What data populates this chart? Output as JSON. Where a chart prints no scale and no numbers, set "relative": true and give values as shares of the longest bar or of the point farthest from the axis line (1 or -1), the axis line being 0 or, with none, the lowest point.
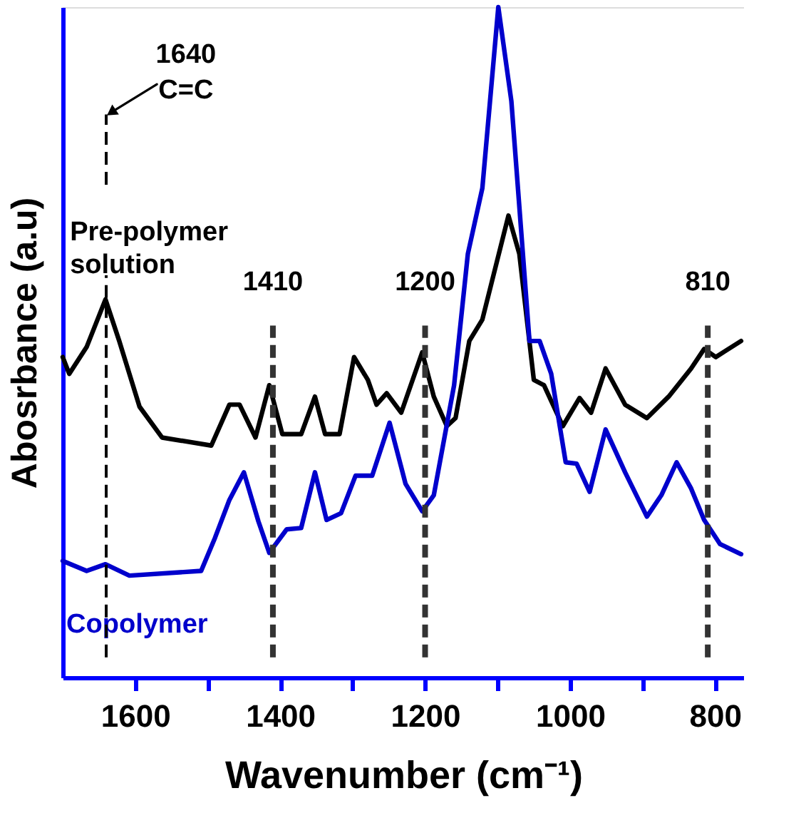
{
  "chart_data": {
    "type": "line",
    "relative": true,
    "xlabel": "Wavenumber (cm⁻¹)",
    "ylabel": "Abosrbance (a.u)",
    "xlim": [
      1700,
      760
    ],
    "xticks": [
      1600,
      {
        "value": 1500,
        "label": null
      },
      1400,
      {
        "value": 1300,
        "label": null
      },
      1200,
      {
        "value": 1100,
        "label": null
      },
      1000,
      {
        "value": 900,
        "label": null
      },
      800
    ],
    "grid": false,
    "legend": false,
    "marker": "none",
    "line_style": "solid",
    "series": [
      {
        "name": "Pre-polymer solution",
        "color": "#000000",
        "x": [
          1700,
          1691,
          1667,
          1641,
          1622,
          1594,
          1563,
          1495,
          1470,
          1456,
          1434,
          1415,
          1397,
          1371,
          1352,
          1338,
          1318,
          1298,
          1279,
          1267,
          1253,
          1233,
          1204,
          1188,
          1170,
          1158,
          1139,
          1121,
          1085,
          1070,
          1050,
          1036,
          1010,
          987,
          971,
          951,
          924,
          894,
          864,
          833,
          815,
          799,
          764
        ],
        "values": [
          0.478,
          0.453,
          0.493,
          0.564,
          0.502,
          0.404,
          0.358,
          0.346,
          0.407,
          0.407,
          0.358,
          0.436,
          0.363,
          0.363,
          0.419,
          0.363,
          0.363,
          0.478,
          0.444,
          0.407,
          0.424,
          0.395,
          0.485,
          0.419,
          0.375,
          0.387,
          0.502,
          0.534,
          0.689,
          0.632,
          0.444,
          0.436,
          0.375,
          0.417,
          0.395,
          0.461,
          0.407,
          0.387,
          0.419,
          0.461,
          0.49,
          0.478,
          0.502
        ]
      },
      {
        "name": "Copolymer",
        "color": "#0000cc",
        "x": [
          1700,
          1667,
          1641,
          1608,
          1509,
          1490,
          1470,
          1450,
          1430,
          1415,
          1391,
          1371,
          1352,
          1336,
          1316,
          1296,
          1273,
          1249,
          1233,
          1227,
          1204,
          1188,
          1160,
          1141,
          1121,
          1099,
          1081,
          1056,
          1042,
          1026,
          1006,
          991,
          973,
          951,
          924,
          894,
          874,
          853,
          833,
          815,
          793,
          764
        ],
        "values": [
          0.174,
          0.159,
          0.169,
          0.152,
          0.159,
          0.208,
          0.265,
          0.306,
          0.233,
          0.186,
          0.221,
          0.223,
          0.306,
          0.235,
          0.245,
          0.301,
          0.301,
          0.38,
          0.314,
          0.289,
          0.248,
          0.272,
          0.436,
          0.632,
          0.73,
          1,
          0.86,
          0.502,
          0.502,
          0.453,
          0.321,
          0.319,
          0.277,
          0.37,
          0.306,
          0.24,
          0.272,
          0.321,
          0.282,
          0.235,
          0.199,
          0.184
        ]
      }
    ],
    "ref_lines": [
      {
        "axis": "x",
        "value": 1640,
        "color": "#000000",
        "line_style": "dashed"
      },
      {
        "axis": "x",
        "value": 1410,
        "label": "1410",
        "color": "#333333",
        "line_style": "dashed"
      },
      {
        "axis": "x",
        "value": 1200,
        "label": "1200",
        "color": "#333333",
        "line_style": "dashed"
      },
      {
        "axis": "x",
        "value": 810,
        "label": "810",
        "color": "#333333",
        "line_style": "dashed"
      }
    ],
    "annotations": [
      "1640 C=C"
    ]
  }
}
